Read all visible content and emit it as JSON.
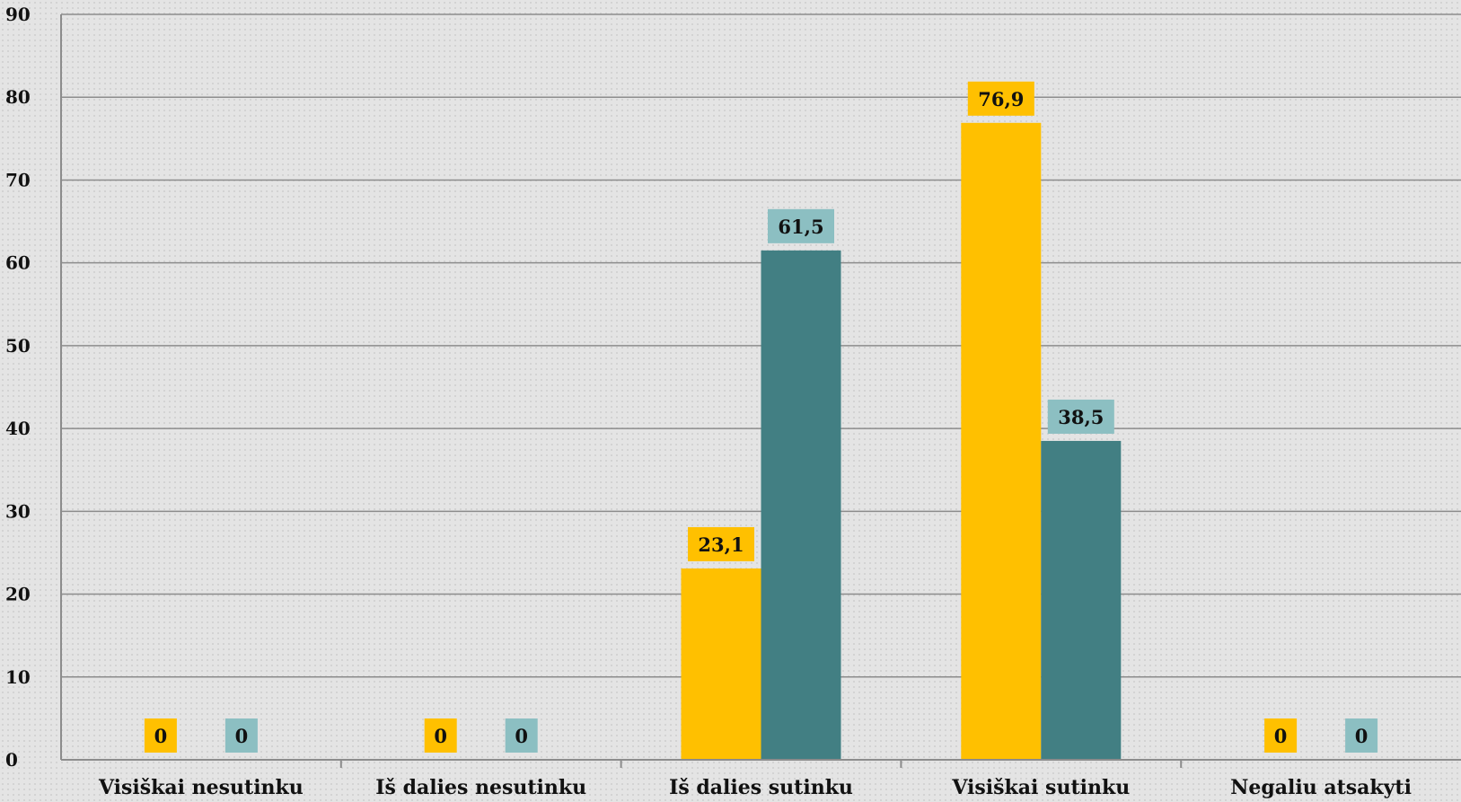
{
  "chart_data": {
    "type": "bar",
    "categories": [
      "Visiškai nesutinku",
      "Iš dalies nesutinku",
      "Iš dalies sutinku",
      "Visiškai sutinku",
      "Negaliu atsakyti"
    ],
    "series": [
      {
        "color": "#ffc000",
        "label_bg": "#ffc000",
        "values": [
          0,
          0,
          23.1,
          76.9,
          0
        ]
      },
      {
        "color": "#427f83",
        "label_bg": "#8cbfc2",
        "values": [
          0,
          0,
          61.5,
          38.5,
          0
        ]
      }
    ],
    "value_labels": [
      [
        "0",
        "0",
        "23,1",
        "76,9",
        "0"
      ],
      [
        "0",
        "0",
        "61,5",
        "38,5",
        "0"
      ]
    ],
    "ylim": [
      0,
      90
    ],
    "yticks": [
      "0",
      "10",
      "20",
      "30",
      "40",
      "50",
      "60",
      "70",
      "80",
      "90"
    ],
    "grid": true,
    "title": "",
    "xlabel": "",
    "ylabel": ""
  }
}
